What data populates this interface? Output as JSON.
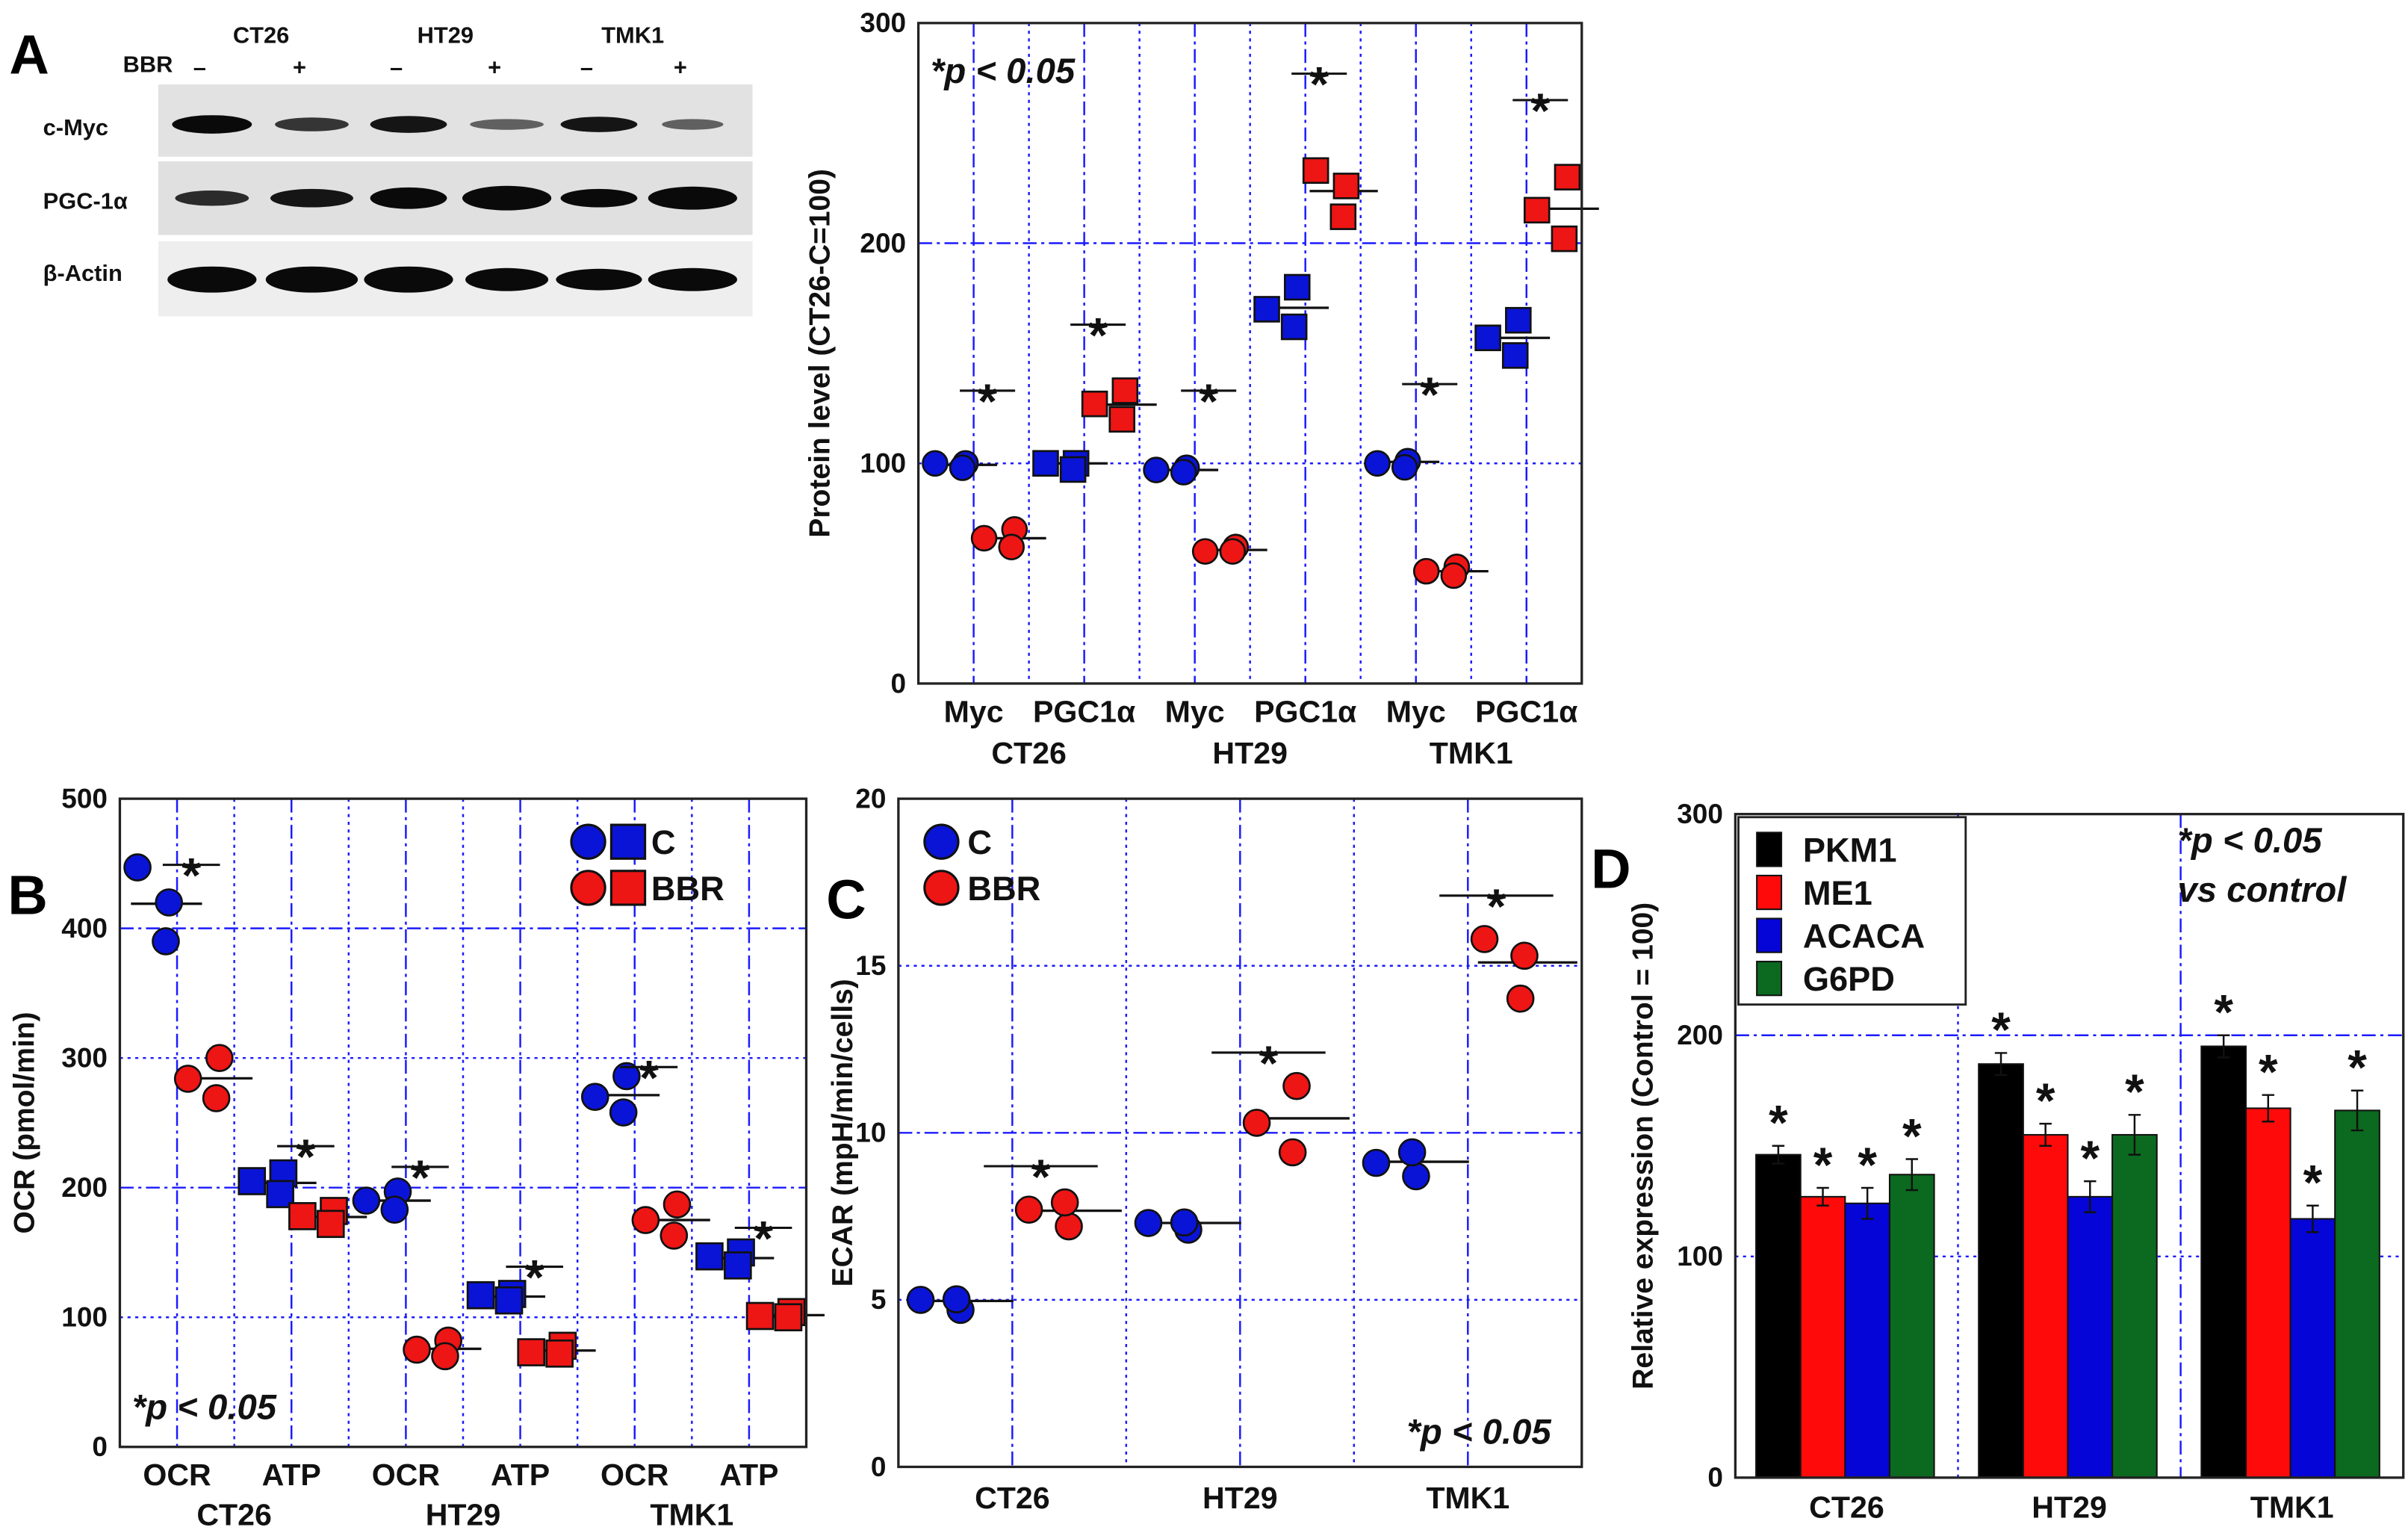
{
  "western_blot": {
    "panel_label": "A",
    "treatment_label": "BBR",
    "cell_lines": [
      "CT26",
      "HT29",
      "TMK1"
    ],
    "lane_signs": [
      "–",
      "+",
      "–",
      "+",
      "–",
      "+"
    ],
    "rows": [
      "c-Myc",
      "PGC-1α",
      "β-Actin"
    ]
  },
  "chart_data": [
    {
      "panel_label": "A",
      "type": "scatter",
      "title": "",
      "ylabel": "Protein level (CT26-C=100)",
      "ylim": [
        0,
        300
      ],
      "yticks": [
        0,
        100,
        200,
        300
      ],
      "grid": true,
      "categories": [
        "Myc",
        "PGC1α",
        "Myc",
        "PGC1α",
        "Myc",
        "PGC1α"
      ],
      "markers": [
        "circle",
        "square",
        "circle",
        "square",
        "circle",
        "square"
      ],
      "groups": [
        "CT26",
        "HT29",
        "TMK1"
      ],
      "series": [
        {
          "name": "C",
          "color": "#0a14d6",
          "values": [
            [
              100,
              100,
              98
            ],
            [
              100,
              100,
              100
            ],
            [
              97,
              98,
              96
            ],
            [
              170,
              180,
              162
            ],
            [
              100,
              101,
              101
            ],
            [
              157,
              165,
              149
            ]
          ]
        },
        {
          "name": "BBR",
          "color": "#ee1515",
          "values": [
            [
              66,
              70,
              62
            ],
            [
              127,
              133,
              120
            ],
            [
              60,
              62,
              60
            ],
            [
              233,
              226,
              212
            ],
            [
              51,
              53,
              49
            ],
            [
              215,
              230,
              202
            ]
          ]
        }
      ],
      "significance": [
        133,
        163,
        133,
        277,
        136,
        265
      ],
      "significance_label": "*",
      "annotation": "*p < 0.05"
    },
    {
      "panel_label": "B",
      "type": "scatter",
      "title": "",
      "ylabel": "OCR (pmol/min)",
      "ylim": [
        0,
        500
      ],
      "yticks": [
        0,
        100,
        200,
        300,
        400,
        500
      ],
      "grid": true,
      "categories": [
        "OCR",
        "ATP",
        "OCR",
        "ATP",
        "OCR",
        "ATP"
      ],
      "markers": [
        "circle",
        "square",
        "circle",
        "square",
        "circle",
        "square"
      ],
      "groups": [
        "CT26",
        "HT29",
        "TMK1"
      ],
      "legend": {
        "placement": "top-right",
        "entries": [
          "C",
          "BBR"
        ]
      },
      "series": [
        {
          "name": "C",
          "color": "#0a14d6",
          "values": [
            [
              447,
              420,
              390
            ],
            [
              205,
              211,
              195
            ],
            [
              190,
              197,
              183
            ],
            [
              117,
              118,
              113
            ],
            [
              270,
              286,
              258
            ],
            [
              147,
              150,
              140
            ]
          ]
        },
        {
          "name": "BBR",
          "color": "#ee1515",
          "values": [
            [
              284,
              300,
              269
            ],
            [
              178,
              182,
              172
            ],
            [
              75,
              82,
              70
            ],
            [
              73,
              78,
              72
            ],
            [
              175,
              187,
              163
            ],
            [
              101,
              104,
              100
            ]
          ]
        }
      ],
      "significance": [
        449,
        232,
        216,
        139,
        293,
        169
      ],
      "significance_label": "*",
      "annotation": "*p < 0.05"
    },
    {
      "panel_label": "C",
      "type": "scatter",
      "title": "",
      "ylabel": "ECAR (mpH/min/cells)",
      "ylim": [
        0,
        20
      ],
      "yticks": [
        0,
        5,
        10,
        15,
        20
      ],
      "grid": true,
      "categories": [
        "CT26",
        "HT29",
        "TMK1"
      ],
      "markers": [
        "circle",
        "circle",
        "circle"
      ],
      "legend": {
        "placement": "top-left",
        "entries": [
          "C",
          "BBR"
        ]
      },
      "series": [
        {
          "name": "C",
          "color": "#0a14d6",
          "values": [
            [
              5.0,
              4.7,
              5.2
            ],
            [
              7.3,
              7.1,
              7.5
            ],
            [
              9.1,
              8.7,
              9.6
            ]
          ]
        },
        {
          "name": "BBR",
          "color": "#ee1515",
          "values": [
            [
              7.7,
              7.2,
              8.1
            ],
            [
              10.3,
              11.4,
              9.6
            ],
            [
              15.8,
              15.3,
              14.2
            ]
          ]
        }
      ],
      "significance": [
        9.0,
        12.4,
        17.1
      ],
      "significance_label": "*",
      "annotation": "*p < 0.05"
    },
    {
      "panel_label": "D",
      "type": "bar",
      "title": "",
      "ylabel": "Relative expression (Control = 100)",
      "ylim": [
        0,
        300
      ],
      "yticks": [
        0,
        100,
        200,
        300
      ],
      "grid": true,
      "categories": [
        "CT26",
        "HT29",
        "TMK1"
      ],
      "legend": {
        "placement": "top-left",
        "entries": [
          "PKM1",
          "ME1",
          "ACACA",
          "G6PD"
        ]
      },
      "series": [
        {
          "name": "PKM1",
          "color": "#000000",
          "values": [
            146,
            187,
            195
          ],
          "errors": [
            4,
            5,
            5
          ]
        },
        {
          "name": "ME1",
          "color": "#ff0a0a",
          "values": [
            127,
            155,
            167
          ],
          "errors": [
            4,
            5,
            6
          ]
        },
        {
          "name": "ACACA",
          "color": "#0505d8",
          "values": [
            124,
            127,
            117
          ],
          "errors": [
            7,
            7,
            6
          ]
        },
        {
          "name": "G6PD",
          "color": "#0b6a1f",
          "values": [
            137,
            155,
            166
          ],
          "errors": [
            7,
            9,
            9
          ]
        }
      ],
      "significance_label": "*",
      "annotation": [
        "*p < 0.05",
        "vs control"
      ]
    }
  ]
}
